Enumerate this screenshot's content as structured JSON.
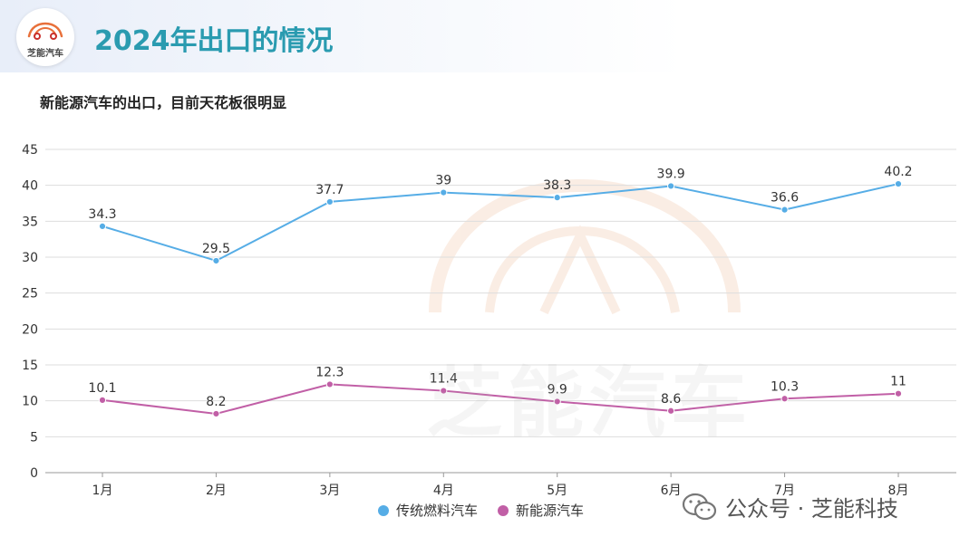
{
  "header": {
    "title": "2024年出口的情况",
    "logo_text": "芝能汽车"
  },
  "subtitle": "新能源汽车的出口，目前天花板很明显",
  "watermark": {
    "text": "芝能汽车"
  },
  "footer": {
    "wechat_text": "公众号 · 芝能科技"
  },
  "colors": {
    "title": "#2a9bb0",
    "series_traditional": "#56ade6",
    "series_nev": "#c15fa6",
    "grid": "#dddddd"
  },
  "chart_data": {
    "type": "line",
    "title": "新能源汽车的出口，目前天花板很明显",
    "xlabel": "",
    "ylabel": "",
    "categories": [
      "1月",
      "2月",
      "3月",
      "4月",
      "5月",
      "6月",
      "7月",
      "8月"
    ],
    "ylim": [
      0,
      45
    ],
    "yticks": [
      0,
      5,
      10,
      15,
      20,
      25,
      30,
      35,
      40,
      45
    ],
    "grid": true,
    "legend": "bottom",
    "series": [
      {
        "name": "传统燃料汽车",
        "color": "#56ade6",
        "values": [
          34.3,
          29.5,
          37.7,
          39,
          38.3,
          39.9,
          36.6,
          40.2
        ],
        "labels": [
          "34.3",
          "29.5",
          "37.7",
          "39",
          "38.3",
          "39.9",
          "36.6",
          "40.2"
        ]
      },
      {
        "name": "新能源汽车",
        "color": "#c15fa6",
        "values": [
          10.1,
          8.2,
          12.3,
          11.4,
          9.9,
          8.6,
          10.3,
          11
        ],
        "labels": [
          "10.1",
          "8.2",
          "12.3",
          "11.4",
          "9.9",
          "8.6",
          "10.3",
          "11"
        ]
      }
    ]
  }
}
